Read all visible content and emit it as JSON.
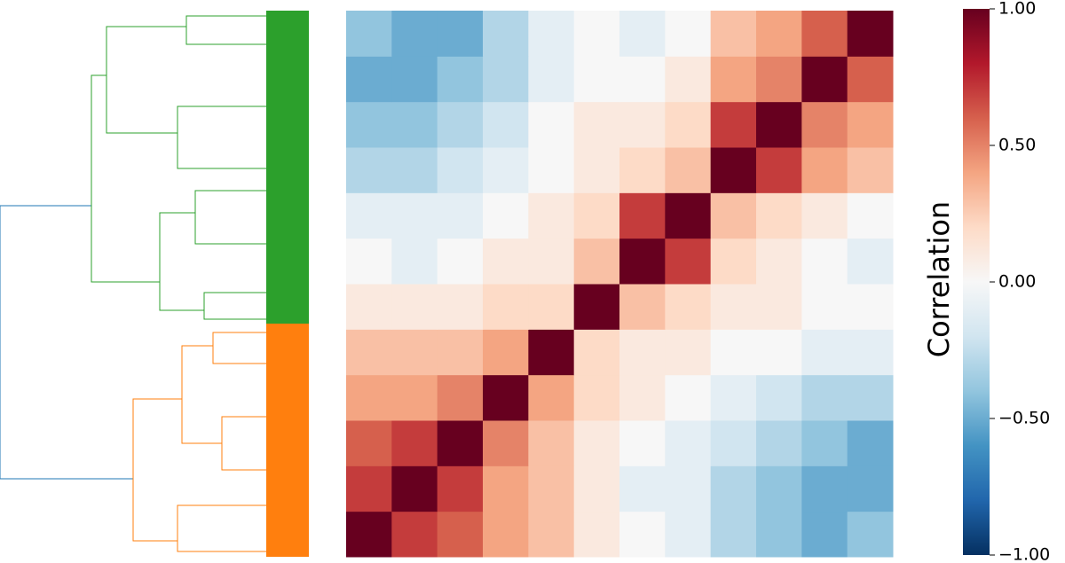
{
  "chart_data": {
    "type": "heatmap",
    "colorbar_label": "Correlation",
    "clim": [
      -1,
      1
    ],
    "colorbar_ticks": [
      {
        "value": 1,
        "label": "1.00"
      },
      {
        "value": 0.5,
        "label": "0.50"
      },
      {
        "value": 0,
        "label": "0.00"
      },
      {
        "value": -0.5,
        "label": "−0.50"
      },
      {
        "value": -1,
        "label": "−1.00"
      }
    ],
    "colormap": [
      "#053061",
      "#2166ac",
      "#4393c3",
      "#92c5de",
      "#d1e5f0",
      "#f7f7f7",
      "#fddbc7",
      "#f4a582",
      "#d6604d",
      "#b2182b",
      "#67001f"
    ],
    "cluster_colors": [
      "#2ca02c",
      "#ff7f0e",
      "#1f77b4"
    ],
    "matrix": [
      [
        1,
        0.7,
        0.6,
        0.4,
        0.3,
        0.1,
        0,
        -0.1,
        -0.3,
        -0.4,
        -0.5,
        -0.4
      ],
      [
        0.7,
        1,
        0.7,
        0.4,
        0.3,
        0.1,
        -0.1,
        -0.1,
        -0.3,
        -0.4,
        -0.5,
        -0.5
      ],
      [
        0.6,
        0.7,
        1,
        0.5,
        0.3,
        0.1,
        0,
        -0.1,
        -0.2,
        -0.3,
        -0.4,
        -0.5
      ],
      [
        0.4,
        0.4,
        0.5,
        1,
        0.4,
        0.2,
        0.1,
        0,
        -0.1,
        -0.2,
        -0.3,
        -0.3
      ],
      [
        0.3,
        0.3,
        0.3,
        0.4,
        1,
        0.2,
        0.1,
        0.1,
        0,
        0,
        -0.1,
        -0.1
      ],
      [
        0.1,
        0.1,
        0.1,
        0.2,
        0.2,
        1,
        0.3,
        0.2,
        0.1,
        0.1,
        0,
        0
      ],
      [
        0,
        -0.1,
        0,
        0.1,
        0.1,
        0.3,
        1,
        0.7,
        0.2,
        0.1,
        0,
        -0.1
      ],
      [
        -0.1,
        -0.1,
        -0.1,
        0,
        0.1,
        0.2,
        0.7,
        1,
        0.3,
        0.2,
        0.1,
        0
      ],
      [
        -0.3,
        -0.3,
        -0.2,
        -0.1,
        0,
        0.1,
        0.2,
        0.3,
        1,
        0.7,
        0.4,
        0.3
      ],
      [
        -0.4,
        -0.4,
        -0.3,
        -0.2,
        0,
        0.1,
        0.1,
        0.2,
        0.7,
        1,
        0.5,
        0.4
      ],
      [
        -0.5,
        -0.5,
        -0.4,
        -0.3,
        -0.1,
        0,
        0,
        0.1,
        0.4,
        0.5,
        1,
        0.6
      ],
      [
        -0.4,
        -0.5,
        -0.5,
        -0.3,
        -0.1,
        0,
        -0.1,
        0,
        0.3,
        0.4,
        0.6,
        1
      ]
    ]
  }
}
